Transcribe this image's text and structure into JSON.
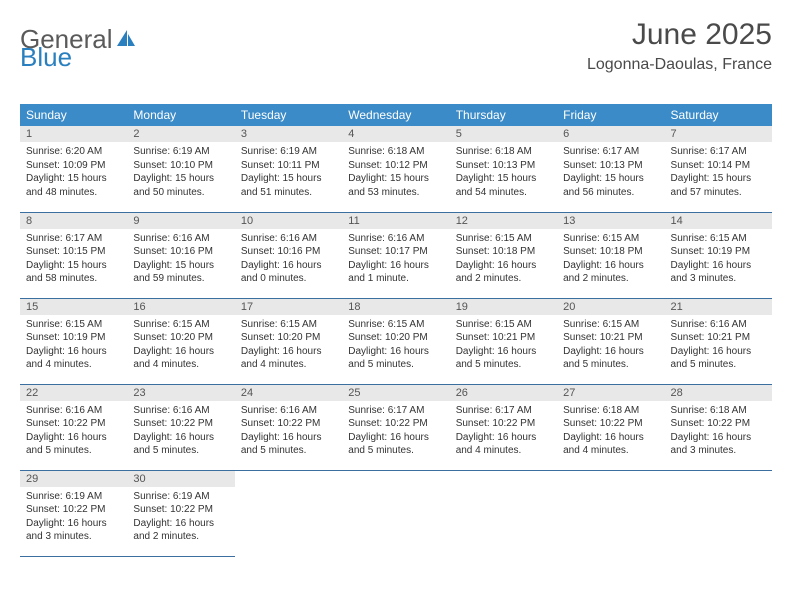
{
  "logo": {
    "word1": "General",
    "word2": "Blue"
  },
  "title": "June 2025",
  "location": "Logonna-Daoulas, France",
  "colors": {
    "header_bg": "#3b8bc9",
    "header_text": "#ffffff",
    "daynum_bg": "#e8e8e8",
    "row_border": "#3b6fa0",
    "logo_gray": "#5a5a5a",
    "logo_blue": "#2a7fbf"
  },
  "day_names": [
    "Sunday",
    "Monday",
    "Tuesday",
    "Wednesday",
    "Thursday",
    "Friday",
    "Saturday"
  ],
  "weeks": [
    [
      {
        "n": "1",
        "sr": "6:20 AM",
        "ss": "10:09 PM",
        "dl": "15 hours and 48 minutes."
      },
      {
        "n": "2",
        "sr": "6:19 AM",
        "ss": "10:10 PM",
        "dl": "15 hours and 50 minutes."
      },
      {
        "n": "3",
        "sr": "6:19 AM",
        "ss": "10:11 PM",
        "dl": "15 hours and 51 minutes."
      },
      {
        "n": "4",
        "sr": "6:18 AM",
        "ss": "10:12 PM",
        "dl": "15 hours and 53 minutes."
      },
      {
        "n": "5",
        "sr": "6:18 AM",
        "ss": "10:13 PM",
        "dl": "15 hours and 54 minutes."
      },
      {
        "n": "6",
        "sr": "6:17 AM",
        "ss": "10:13 PM",
        "dl": "15 hours and 56 minutes."
      },
      {
        "n": "7",
        "sr": "6:17 AM",
        "ss": "10:14 PM",
        "dl": "15 hours and 57 minutes."
      }
    ],
    [
      {
        "n": "8",
        "sr": "6:17 AM",
        "ss": "10:15 PM",
        "dl": "15 hours and 58 minutes."
      },
      {
        "n": "9",
        "sr": "6:16 AM",
        "ss": "10:16 PM",
        "dl": "15 hours and 59 minutes."
      },
      {
        "n": "10",
        "sr": "6:16 AM",
        "ss": "10:16 PM",
        "dl": "16 hours and 0 minutes."
      },
      {
        "n": "11",
        "sr": "6:16 AM",
        "ss": "10:17 PM",
        "dl": "16 hours and 1 minute."
      },
      {
        "n": "12",
        "sr": "6:15 AM",
        "ss": "10:18 PM",
        "dl": "16 hours and 2 minutes."
      },
      {
        "n": "13",
        "sr": "6:15 AM",
        "ss": "10:18 PM",
        "dl": "16 hours and 2 minutes."
      },
      {
        "n": "14",
        "sr": "6:15 AM",
        "ss": "10:19 PM",
        "dl": "16 hours and 3 minutes."
      }
    ],
    [
      {
        "n": "15",
        "sr": "6:15 AM",
        "ss": "10:19 PM",
        "dl": "16 hours and 4 minutes."
      },
      {
        "n": "16",
        "sr": "6:15 AM",
        "ss": "10:20 PM",
        "dl": "16 hours and 4 minutes."
      },
      {
        "n": "17",
        "sr": "6:15 AM",
        "ss": "10:20 PM",
        "dl": "16 hours and 4 minutes."
      },
      {
        "n": "18",
        "sr": "6:15 AM",
        "ss": "10:20 PM",
        "dl": "16 hours and 5 minutes."
      },
      {
        "n": "19",
        "sr": "6:15 AM",
        "ss": "10:21 PM",
        "dl": "16 hours and 5 minutes."
      },
      {
        "n": "20",
        "sr": "6:15 AM",
        "ss": "10:21 PM",
        "dl": "16 hours and 5 minutes."
      },
      {
        "n": "21",
        "sr": "6:16 AM",
        "ss": "10:21 PM",
        "dl": "16 hours and 5 minutes."
      }
    ],
    [
      {
        "n": "22",
        "sr": "6:16 AM",
        "ss": "10:22 PM",
        "dl": "16 hours and 5 minutes."
      },
      {
        "n": "23",
        "sr": "6:16 AM",
        "ss": "10:22 PM",
        "dl": "16 hours and 5 minutes."
      },
      {
        "n": "24",
        "sr": "6:16 AM",
        "ss": "10:22 PM",
        "dl": "16 hours and 5 minutes."
      },
      {
        "n": "25",
        "sr": "6:17 AM",
        "ss": "10:22 PM",
        "dl": "16 hours and 5 minutes."
      },
      {
        "n": "26",
        "sr": "6:17 AM",
        "ss": "10:22 PM",
        "dl": "16 hours and 4 minutes."
      },
      {
        "n": "27",
        "sr": "6:18 AM",
        "ss": "10:22 PM",
        "dl": "16 hours and 4 minutes."
      },
      {
        "n": "28",
        "sr": "6:18 AM",
        "ss": "10:22 PM",
        "dl": "16 hours and 3 minutes."
      }
    ],
    [
      {
        "n": "29",
        "sr": "6:19 AM",
        "ss": "10:22 PM",
        "dl": "16 hours and 3 minutes."
      },
      {
        "n": "30",
        "sr": "6:19 AM",
        "ss": "10:22 PM",
        "dl": "16 hours and 2 minutes."
      },
      null,
      null,
      null,
      null,
      null
    ]
  ],
  "labels": {
    "sunrise": "Sunrise: ",
    "sunset": "Sunset: ",
    "daylight": "Daylight: "
  }
}
